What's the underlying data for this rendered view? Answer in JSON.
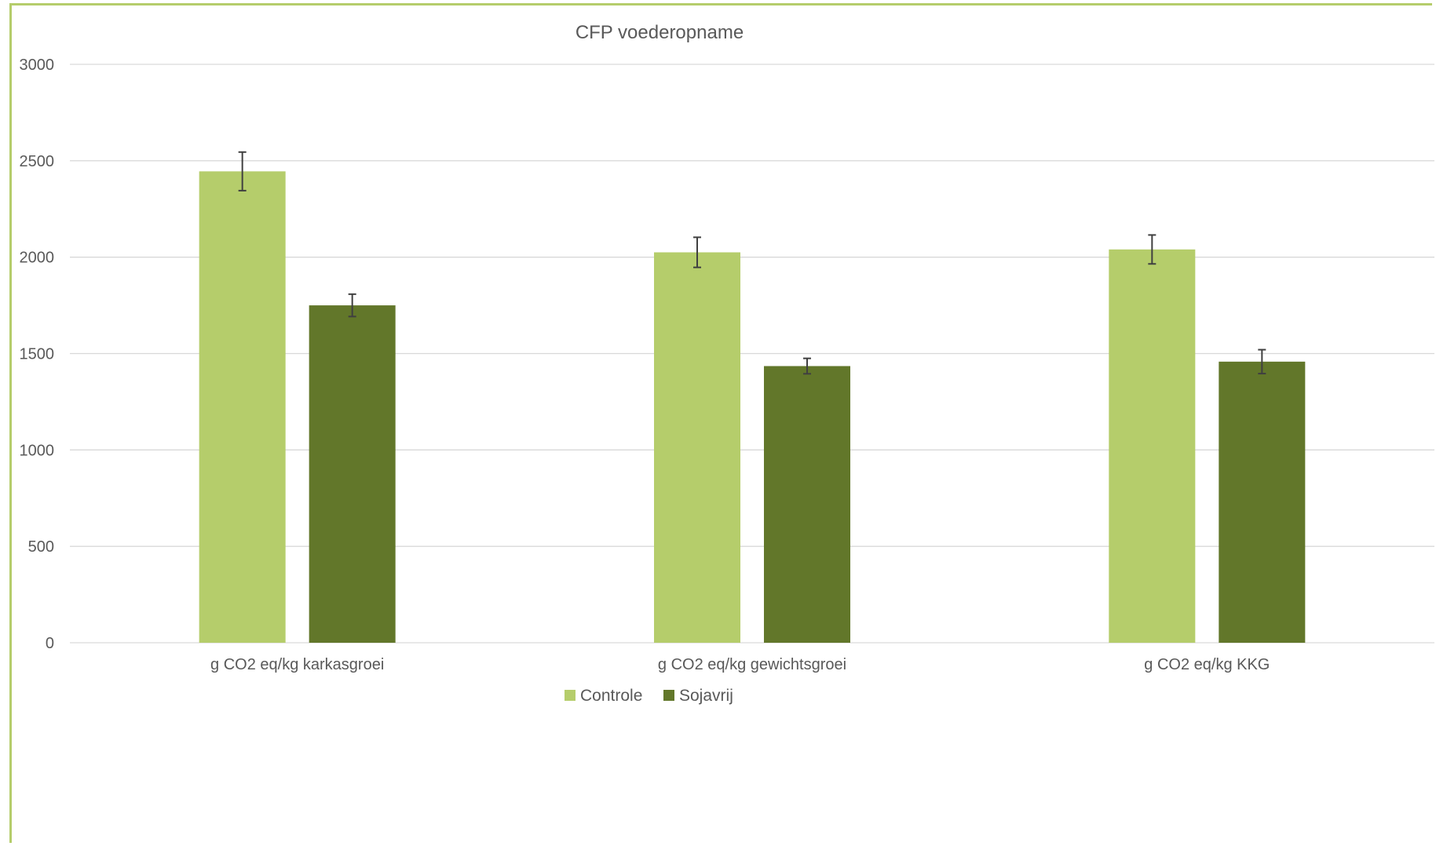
{
  "chart_data": {
    "type": "bar",
    "title": "CFP voederopname",
    "xlabel": "",
    "ylabel": "",
    "ylim": [
      0,
      3000
    ],
    "yticks": [
      0,
      500,
      1000,
      1500,
      2000,
      2500,
      3000
    ],
    "grid": true,
    "legend_position": "bottom",
    "categories": [
      "g CO2 eq/kg karkasgroei",
      "g CO2 eq/kg gewichtsgroei",
      "g CO2 eq/kg KKG"
    ],
    "series": [
      {
        "name": "Controle",
        "color": "#b5cd6b",
        "values": [
          2445,
          2025,
          2040
        ],
        "error": [
          100,
          78,
          75
        ]
      },
      {
        "name": "Sojavrij",
        "color": "#62772a",
        "values": [
          1750,
          1435,
          1458
        ],
        "error": [
          58,
          40,
          62
        ]
      }
    ]
  }
}
